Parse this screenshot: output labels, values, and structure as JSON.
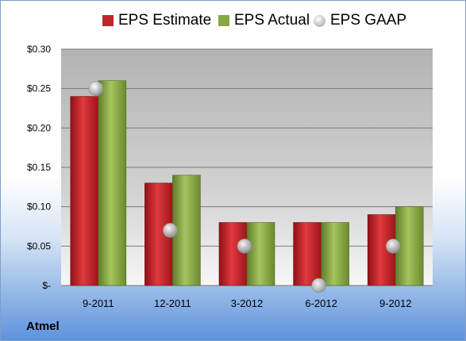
{
  "chart_data": {
    "type": "bar",
    "title": "",
    "xlabel": "",
    "ylabel": "",
    "categories": [
      "9-2011",
      "12-2011",
      "3-2012",
      "6-2012",
      "9-2012"
    ],
    "series": [
      {
        "name": "EPS Estimate",
        "kind": "bar",
        "color": "#c0252b",
        "values": [
          0.24,
          0.13,
          0.08,
          0.08,
          0.09
        ]
      },
      {
        "name": "EPS Actual",
        "kind": "bar",
        "color": "#85a844",
        "values": [
          0.26,
          0.14,
          0.08,
          0.08,
          0.1
        ]
      },
      {
        "name": "EPS GAAP",
        "kind": "marker",
        "color": "#c9cbcf",
        "values": [
          0.25,
          0.07,
          0.05,
          0.0,
          0.05
        ]
      }
    ],
    "ylim": [
      0,
      0.3
    ],
    "yticks": [
      0,
      0.05,
      0.1,
      0.15,
      0.2,
      0.25,
      0.3
    ],
    "ytick_labels": [
      "$-",
      "$0.05",
      "$0.10",
      "$0.15",
      "$0.20",
      "$0.25",
      "$0.30"
    ],
    "grid": true,
    "legend_position": "top"
  },
  "company": "Atmel"
}
